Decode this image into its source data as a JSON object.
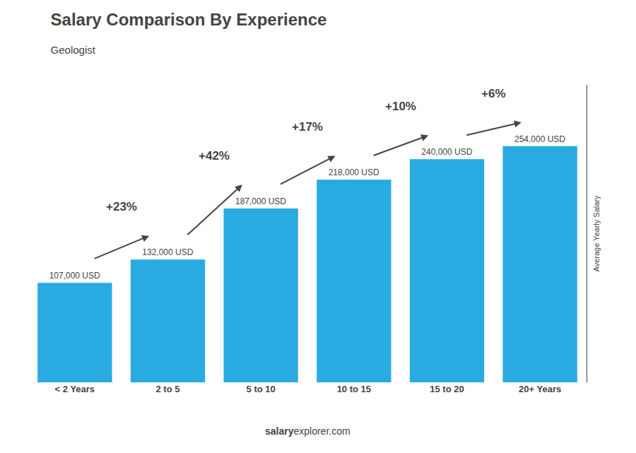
{
  "chart_data": {
    "type": "bar",
    "title": "Salary Comparison By Experience",
    "subtitle": "Geologist",
    "ylabel": "Average Yearly Salary",
    "footer": [
      "salary",
      "explorer.com"
    ],
    "categories": [
      "< 2 Years",
      "2 to 5",
      "5 to 10",
      "10 to 15",
      "15 to 20",
      "20+ Years"
    ],
    "values": [
      107000,
      132000,
      187000,
      218000,
      240000,
      254000
    ],
    "value_labels": [
      "107,000 USD",
      "132,000 USD",
      "187,000 USD",
      "218,000 USD",
      "240,000 USD",
      "254,000 USD"
    ],
    "data_labels": true,
    "annotations": [
      "+23%",
      "+42%",
      "+17%",
      "+10%",
      "+6%"
    ],
    "color": "#29ABE2",
    "ylim": [
      0,
      320000
    ],
    "grid": false,
    "tick_labels": "x"
  }
}
